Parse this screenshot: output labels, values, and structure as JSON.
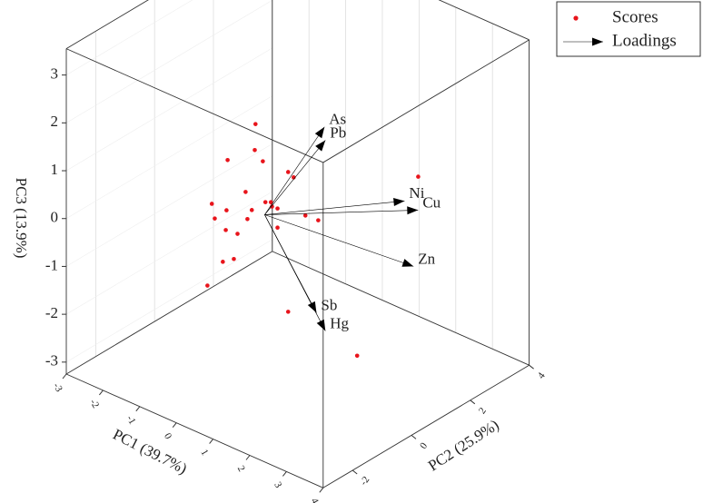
{
  "chart_data": {
    "type": "biplot3d",
    "xlabel": "PC1 (39.7%)",
    "ylabel": "PC2 (25.9%)",
    "zlabel": "PC3 (13.9%)",
    "xlim": [
      -3,
      4
    ],
    "xticks": [
      -3,
      -2,
      -1,
      0,
      1,
      2,
      3,
      4
    ],
    "ylim": [
      -3,
      4
    ],
    "yticks": [
      -2,
      0,
      2,
      4
    ],
    "zlim": [
      -3.25,
      3.55
    ],
    "zticks": [
      -3,
      -2,
      -1,
      0,
      1,
      2,
      3
    ],
    "grid": true,
    "legend": "top-right",
    "series": [
      {
        "name": "Scores",
        "marker": "dot",
        "color": "#e8141b",
        "pc1": [
          -0.25,
          -0.27,
          -0.05,
          -1.01,
          0.64,
          0.79,
          -0.52,
          -1.44,
          0.17,
          0.02,
          0.2,
          0.35,
          -0.35,
          -1.04,
          -1.36,
          -0.47,
          1.11,
          1.46,
          -0.74,
          -1.06,
          0.35,
          -0.84,
          -1.14,
          -1.56,
          0.64,
          2.52,
          2.58
        ],
        "pc2": [
          0,
          0,
          0,
          0,
          0,
          0,
          0,
          0,
          0,
          0,
          0,
          0,
          0,
          0,
          0,
          0,
          0,
          0,
          0,
          0,
          0,
          0,
          0,
          0,
          0,
          0,
          2
        ],
        "pc3": [
          1.81,
          1.26,
          1.1,
          0.8,
          1.11,
          1.05,
          0.3,
          -0.26,
          0.32,
          0.27,
          0.24,
          0.25,
          -0.02,
          -0.26,
          -0.54,
          -0.25,
          0.36,
          0.38,
          -0.65,
          -0.68,
          -0.15,
          -1.21,
          -1.37,
          -2.01,
          -1.81,
          -2.09,
          0.94
        ]
      },
      {
        "name": "Loadings",
        "marker": "arrow",
        "color": "#000000",
        "labels": [
          "As",
          "Pb",
          "Ni",
          "Cu",
          "Zn",
          "Sb",
          "Hg"
        ],
        "pc1": [
          0.5,
          0.5,
          2,
          2,
          2.5,
          1.5,
          1.8
        ],
        "pc2": [
          1.41,
          1.44,
          2.26,
          2.72,
          1.94,
          -0.11,
          -0.18
        ],
        "pc3": [
          1.49,
          1.2,
          0.14,
          -0.22,
          -0.94,
          -1.5,
          -1.75
        ]
      }
    ]
  }
}
